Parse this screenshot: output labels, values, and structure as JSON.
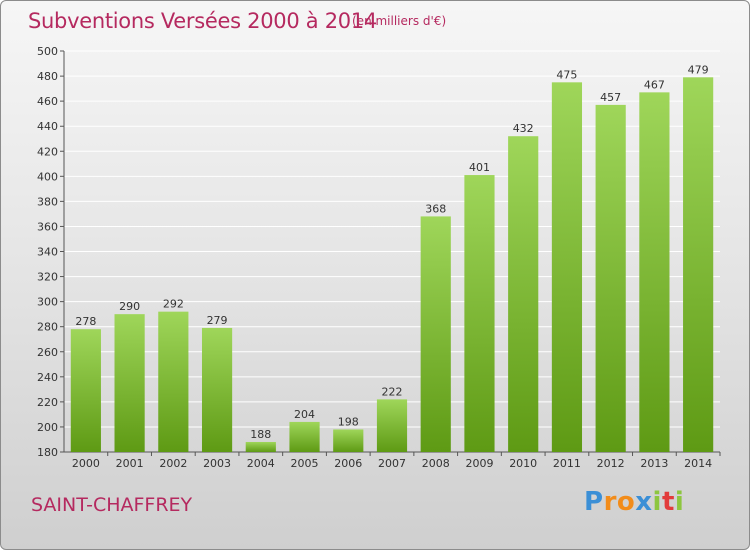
{
  "header": {
    "title": "Subventions Versées 2000 à 2014",
    "subtitle": "(en milliers d'€)"
  },
  "footer": {
    "location": "SAINT-CHAFFREY",
    "logo_text": "Proxiti"
  },
  "colors": {
    "accent": "#b5295f",
    "bar_top": "#9fd65a",
    "bar_bottom": "#5e9a14",
    "grid": "#ffffff"
  },
  "chart_data": {
    "type": "bar",
    "title": "Subventions Versées 2000 à 2014",
    "subtitle": "(en milliers d'€)",
    "xlabel": "",
    "ylabel": "",
    "categories": [
      "2000",
      "2001",
      "2002",
      "2003",
      "2004",
      "2005",
      "2006",
      "2007",
      "2008",
      "2009",
      "2010",
      "2011",
      "2012",
      "2013",
      "2014"
    ],
    "values": [
      278,
      290,
      292,
      279,
      188,
      204,
      198,
      222,
      368,
      401,
      432,
      475,
      457,
      467,
      479
    ],
    "ylim": [
      180,
      500
    ],
    "yticks": [
      180,
      200,
      220,
      240,
      260,
      280,
      300,
      320,
      340,
      360,
      380,
      400,
      420,
      440,
      460,
      480,
      500
    ],
    "grid": true,
    "legend": "none"
  }
}
